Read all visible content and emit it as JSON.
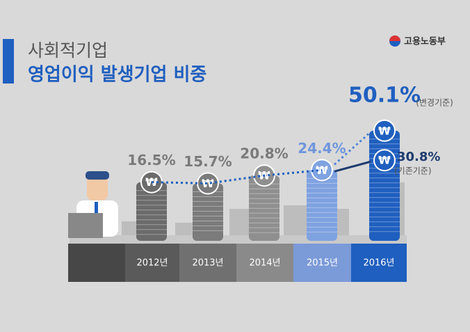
{
  "chart_data": {
    "type": "coin-stack",
    "title": "사회적기업",
    "subtitle": "영업이익 발생기업 비중",
    "logo": "고용노동부",
    "currency_symbol": "₩",
    "categories": [
      "2012년",
      "2013년",
      "2014년",
      "2015년",
      "2016년"
    ],
    "values": [
      16.5,
      15.7,
      20.8,
      24.4,
      50.1
    ],
    "value_labels": [
      "16.5%",
      "15.7%",
      "20.8%",
      "24.4%",
      "50.1%"
    ],
    "colors": [
      "#6b6b6b",
      "#7b7b7b",
      "#8f8f8f",
      "#7fa2e0",
      "#1f5fbf"
    ],
    "label_colors": [
      "#7a7a7a",
      "#7a7a7a",
      "#7a7a7a",
      "#6f95dc",
      "#1f5fbf"
    ],
    "last_note": "(변경기준)",
    "previous_basis": {
      "value": 30.8,
      "label": "30.8%",
      "note": "(기존기준)"
    }
  }
}
